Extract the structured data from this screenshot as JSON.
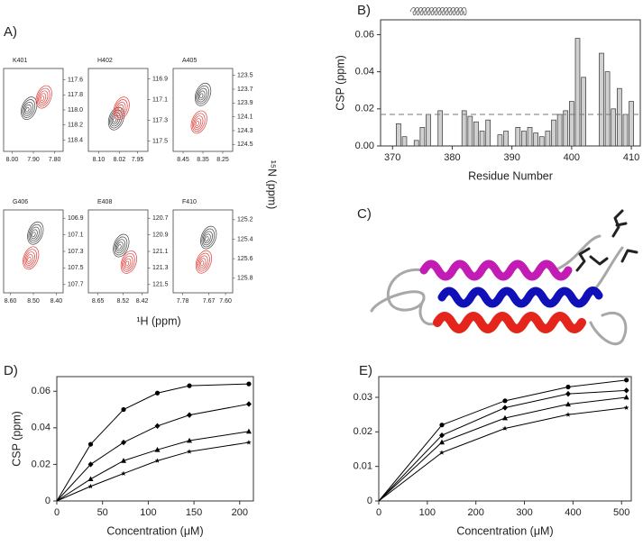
{
  "panel_labels": [
    "A)",
    "B)",
    "C)",
    "D)",
    "E)"
  ],
  "spectra_axes": {
    "x_label": "¹H (ppm)",
    "y_label": "¹⁵N (ppm)"
  },
  "chart_data": [
    {
      "type": "spectrum",
      "title": "K401",
      "xlim": [
        8.04,
        7.76
      ],
      "ylim": [
        118.55,
        117.45
      ],
      "xticks": [
        {
          "value": 8,
          "label": "8.00"
        },
        {
          "value": 7.9,
          "label": "7.90"
        },
        {
          "value": 7.8,
          "label": "7.80"
        }
      ],
      "yticks": [
        117.6,
        117.8,
        {
          "value": 118,
          "label": "118.0"
        },
        118.2,
        118.4
      ],
      "peaks": [
        {
          "color": "#444444",
          "x": 7.93,
          "y": 118.0
        },
        {
          "color": "#e0403a",
          "x": 7.86,
          "y": 117.85
        }
      ]
    },
    {
      "type": "spectrum",
      "title": "H402",
      "xlim": [
        8.14,
        7.91
      ],
      "ylim": [
        117.6,
        116.8
      ],
      "xticks": [
        {
          "value": 8.1,
          "label": "8.10"
        },
        8.02,
        7.95
      ],
      "yticks": [
        116.9,
        117.1,
        117.3,
        117.5
      ],
      "peaks": [
        {
          "color": "#444444",
          "x": 8.04,
          "y": 117.3
        },
        {
          "color": "#e0403a",
          "x": 8.02,
          "y": 117.2
        }
      ]
    },
    {
      "type": "spectrum",
      "title": "A405",
      "xlim": [
        8.5,
        8.2
      ],
      "ylim": [
        124.6,
        123.4
      ],
      "xticks": [
        8.45,
        8.35,
        8.25
      ],
      "yticks": [
        123.5,
        123.7,
        123.9,
        124.1,
        124.3,
        124.5
      ],
      "peaks": [
        {
          "color": "#444444",
          "x": 8.36,
          "y": 123.8
        },
        {
          "color": "#e0403a",
          "x": 8.38,
          "y": 124.2
        }
      ]
    },
    {
      "type": "spectrum",
      "title": "G406",
      "xlim": [
        8.63,
        8.37
      ],
      "ylim": [
        107.8,
        106.8
      ],
      "xticks": [
        {
          "value": 8.6,
          "label": "8.60"
        },
        {
          "value": 8.5,
          "label": "8.50"
        },
        {
          "value": 8.4,
          "label": "8.40"
        }
      ],
      "yticks": [
        106.9,
        107.1,
        107.3,
        107.5,
        107.7
      ],
      "peaks": [
        {
          "color": "#444444",
          "x": 8.5,
          "y": 107.1
        },
        {
          "color": "#e0403a",
          "x": 8.52,
          "y": 107.4
        }
      ]
    },
    {
      "type": "spectrum",
      "title": "E408",
      "xlim": [
        8.7,
        8.39
      ],
      "ylim": [
        121.6,
        120.6
      ],
      "xticks": [
        8.65,
        8.52,
        8.42
      ],
      "yticks": [
        120.7,
        120.9,
        121.1,
        121.3,
        121.5
      ],
      "peaks": [
        {
          "color": "#444444",
          "x": 8.54,
          "y": 121.05
        },
        {
          "color": "#e0403a",
          "x": 8.5,
          "y": 121.25
        }
      ]
    },
    {
      "type": "spectrum",
      "title": "F410",
      "xlim": [
        7.82,
        7.57
      ],
      "ylim": [
        125.95,
        125.1
      ],
      "xticks": [
        7.78,
        7.67,
        {
          "value": 7.6,
          "label": "7.60"
        }
      ],
      "yticks": [
        125.2,
        125.4,
        125.6,
        125.8
      ],
      "peaks": [
        {
          "color": "#444444",
          "x": 7.68,
          "y": 125.4
        },
        {
          "color": "#e0403a",
          "x": 7.7,
          "y": 125.65
        }
      ]
    },
    {
      "type": "bar",
      "x_label": "Residue Number",
      "y_label": "CSP (ppm)",
      "color": "#d0d0d0",
      "threshold": 0.017,
      "xlim": [
        368,
        411.5
      ],
      "xticks": [
        370,
        380,
        390,
        400,
        410
      ],
      "ylim": [
        0,
        0.068
      ],
      "yticks": [
        {
          "value": 0,
          "label": "0.00"
        },
        0.02,
        0.04,
        0.06
      ],
      "x": [
        371,
        372,
        374,
        375,
        376,
        378,
        382,
        383,
        384,
        385,
        386,
        388,
        389,
        391,
        392,
        393,
        394,
        395,
        396,
        397,
        398,
        399,
        400,
        401,
        402,
        405,
        406,
        407,
        408,
        409,
        410
      ],
      "values": [
        0.012,
        0.005,
        0.003,
        0.01,
        0.017,
        0.019,
        0.019,
        0.016,
        0.013,
        0.008,
        0.014,
        0.006,
        0.008,
        0.01,
        0.008,
        0.01,
        0.007,
        0.005,
        0.008,
        0.014,
        0.017,
        0.019,
        0.024,
        0.058,
        0.037,
        0.05,
        0.04,
        0.02,
        0.031,
        0.017,
        0.024
      ]
    },
    {
      "type": "line",
      "x_label": "Concentration (μM)",
      "y_label": "CSP (ppm)",
      "color": "#000000",
      "xlim": [
        0,
        215
      ],
      "xticks": [
        0,
        50,
        100,
        150,
        200
      ],
      "ylim": [
        0,
        0.068
      ],
      "yticks": [
        0,
        0.02,
        0.04,
        0.06
      ],
      "x": [
        0,
        37,
        73,
        110,
        145,
        210
      ],
      "series": [
        {
          "marker": "circle",
          "values": [
            0,
            0.031,
            0.05,
            0.059,
            0.063,
            0.064
          ]
        },
        {
          "marker": "diamond",
          "values": [
            0,
            0.02,
            0.032,
            0.041,
            0.047,
            0.053
          ]
        },
        {
          "marker": "triangle",
          "values": [
            0,
            0.012,
            0.022,
            0.028,
            0.033,
            0.038
          ]
        },
        {
          "marker": "star",
          "values": [
            0,
            0.008,
            0.015,
            0.022,
            0.027,
            0.032
          ]
        }
      ]
    },
    {
      "type": "line",
      "x_label": "Concentration (μM)",
      "color": "#000000",
      "xlim": [
        0,
        520
      ],
      "xticks": [
        0,
        100,
        200,
        300,
        400,
        500
      ],
      "ylim": [
        0,
        0.036
      ],
      "yticks": [
        0,
        0.01,
        0.02,
        0.03
      ],
      "x": [
        0,
        130,
        260,
        390,
        510
      ],
      "series": [
        {
          "marker": "circle",
          "values": [
            0,
            0.022,
            0.029,
            0.033,
            0.035
          ]
        },
        {
          "marker": "diamond",
          "values": [
            0,
            0.019,
            0.027,
            0.031,
            0.032
          ]
        },
        {
          "marker": "triangle",
          "values": [
            0,
            0.017,
            0.024,
            0.028,
            0.03
          ]
        },
        {
          "marker": "star",
          "values": [
            0,
            0.014,
            0.021,
            0.025,
            0.027
          ]
        }
      ]
    }
  ]
}
